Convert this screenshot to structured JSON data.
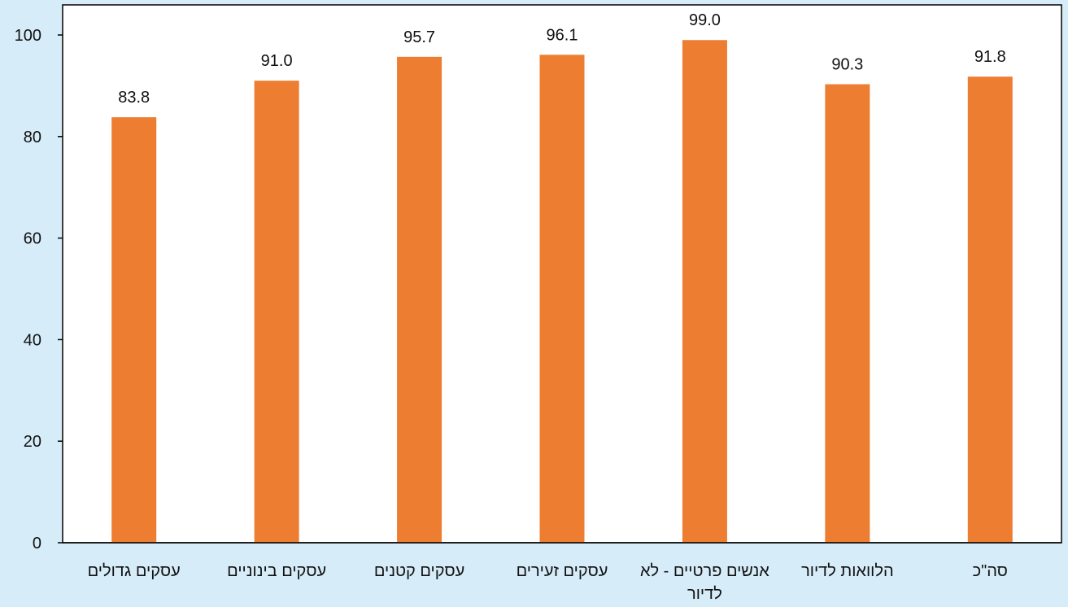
{
  "colors": {
    "page_background": "#d6ecf9",
    "plot_background": "#ffffff",
    "bar": "#ed7d31",
    "axis": "#000000",
    "text": "#111111"
  },
  "chart_data": {
    "type": "bar",
    "categories": [
      [
        "עסקים גדולים"
      ],
      [
        "עסקים בינוניים"
      ],
      [
        "עסקים קטנים"
      ],
      [
        "עסקים זעירים"
      ],
      [
        "אנשים פרטיים - לא",
        "לדיור"
      ],
      [
        "הלוואות לדיור"
      ],
      [
        "סה\"כ"
      ]
    ],
    "values": [
      83.8,
      91.0,
      95.7,
      96.1,
      99.0,
      90.3,
      91.8
    ],
    "value_labels": [
      "83.8",
      "91.0",
      "95.7",
      "96.1",
      "99.0",
      "90.3",
      "91.8"
    ],
    "y_ticks": [
      0,
      20,
      40,
      60,
      80,
      100
    ],
    "ylim": [
      0,
      100
    ],
    "xlabel": "",
    "ylabel": "",
    "title": "",
    "grid": false,
    "legend": "none"
  }
}
